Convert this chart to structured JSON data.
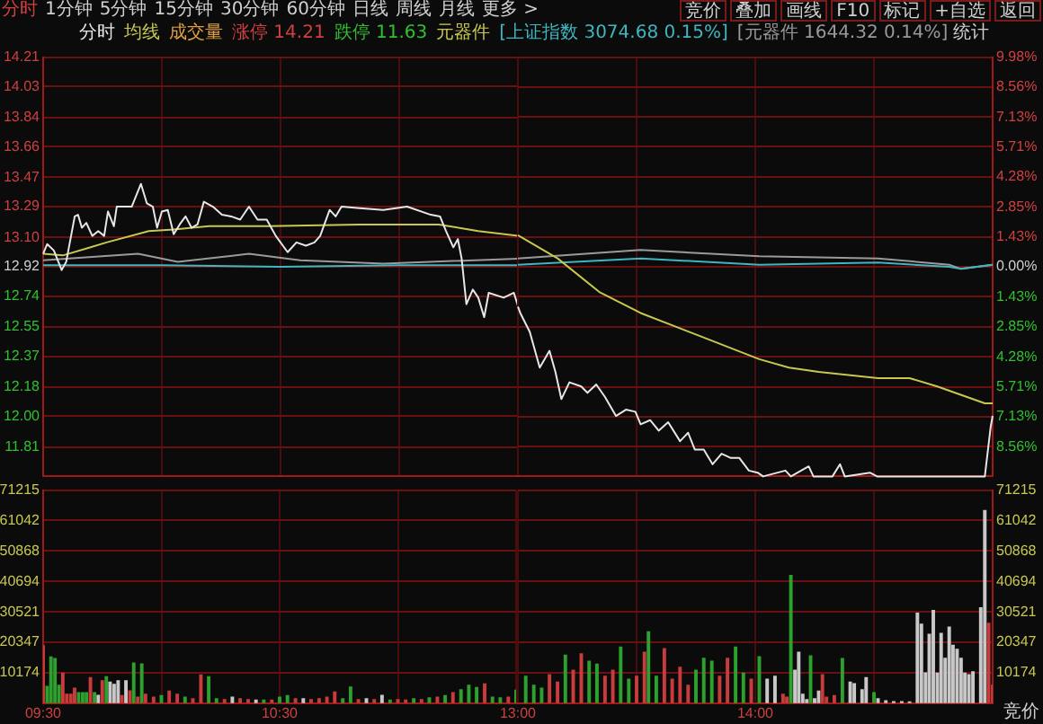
{
  "chart_data": [
    {
      "type": "line",
      "legend": "top",
      "grid": true,
      "tick_labels": "y",
      "xlim": [
        9.5,
        11.5
      ],
      "xticks": [
        {
          "value": 9.5,
          "label": null
        },
        {
          "value": 10,
          "label": null
        },
        {
          "value": 10.5,
          "label": null
        },
        {
          "value": 11,
          "label": null
        }
      ],
      "ylim": [
        11.63,
        14.21
      ],
      "yticks": [
        {
          "value": 14.21,
          "label": "14.21"
        },
        {
          "value": 14.03,
          "label": "14.03"
        },
        {
          "value": 13.84,
          "label": "13.84"
        },
        {
          "value": 13.66,
          "label": "13.66"
        },
        {
          "value": 13.47,
          "label": "13.47"
        },
        {
          "value": 13.29,
          "label": "13.29"
        },
        {
          "value": 13.1,
          "label": "13.10"
        },
        {
          "value": 12.92,
          "label": "12.92"
        },
        {
          "value": 12.74,
          "label": "12.74"
        },
        {
          "value": 12.55,
          "label": "12.55"
        },
        {
          "value": 12.37,
          "label": "12.37"
        },
        {
          "value": 12.18,
          "label": "12.18"
        },
        {
          "value": 12,
          "label": "12.00"
        },
        {
          "value": 11.81,
          "label": "11.81"
        },
        {
          "value": 11.63,
          "label": null
        }
      ],
      "annotations": [
        "涨停 14.21",
        "跌停 11.63",
        "元器件",
        "[上证指数 3074.68 0.15%]",
        "[元器件 1644.32 0.14%]",
        "分时",
        "1分钟",
        "5分钟",
        "15分钟",
        "30分钟",
        "60分钟",
        "日线",
        "周线",
        "月线",
        "更多 >",
        "竞价",
        "叠加",
        "画线",
        "F10",
        "标记",
        "+自选",
        "返回",
        "统计"
      ],
      "series": [
        {
          "name": "分时",
          "color": "#e6e6e6",
          "x": [
            9.5,
            9.517,
            9.545,
            9.578,
            9.597,
            9.633,
            9.647,
            9.663,
            9.682,
            9.707,
            9.732,
            9.757,
            9.773,
            9.798,
            9.81,
            9.873,
            9.912,
            9.937,
            9.962,
            9.98,
            10,
            10.025,
            10.05,
            10.075,
            10.1,
            10.125,
            10.15,
            10.177,
            10.215,
            10.253,
            10.292,
            10.33,
            10.367,
            10.403,
            10.442,
            10.48,
            10.53,
            10.567,
            10.607,
            10.643,
            10.667,
            10.707,
            10.732,
            10.757,
            10.833,
            10.933,
            11.033,
            11.133,
            11.172,
            11.197,
            11.228,
            11.247,
            11.263,
            11.283,
            11.31,
            11.333,
            11.358,
            11.377,
            11.44,
            11.483,
            11.5
          ],
          "values": [
            13.0,
            13.06,
            13.02,
            12.9,
            12.95,
            13.23,
            13.24,
            13.16,
            13.19,
            13.11,
            13.14,
            13.11,
            13.26,
            13.17,
            13.29,
            13.29,
            13.43,
            13.31,
            13.29,
            13.16,
            13.26,
            13.27,
            13.12,
            13.18,
            13.23,
            13.16,
            13.18,
            13.32,
            13.29,
            13.24,
            13.23,
            13.21,
            13.29,
            13.21,
            13.21,
            13.11,
            13.01,
            13.07,
            13.05,
            13.07,
            13.11,
            13.27,
            13.23,
            13.29,
            13.28,
            13.27,
            13.29,
            13.24,
            13.23,
            13.14,
            13.04,
            13.09,
            12.97,
            12.69,
            12.78,
            12.73,
            12.61,
            12.76,
            12.73,
            12.76,
            12.68
          ]
        },
        {
          "name": "均线",
          "color": "#c8c850",
          "x": [
            9.5,
            9.583,
            9.7,
            9.767,
            9.945,
            10.05,
            10.2,
            10.45,
            10.833,
            11.167,
            11.333,
            11.5
          ],
          "values": [
            13.0,
            12.99,
            13.04,
            13.07,
            13.14,
            13.15,
            13.17,
            13.17,
            13.18,
            13.18,
            13.14,
            13.11
          ]
        },
        {
          "color": "#3fb6c0",
          "x": [
            9.5,
            10,
            10.5,
            11,
            11.5
          ],
          "values": [
            12.93,
            12.93,
            12.92,
            12.93,
            12.93
          ]
        },
        {
          "color": "#9a9a9a",
          "x": [
            9.5,
            9.9,
            10.067,
            10.367,
            10.583,
            10.933,
            11.5
          ],
          "values": [
            12.96,
            13.0,
            12.95,
            13.0,
            12.96,
            12.94,
            12.97
          ]
        }
      ]
    },
    {
      "type": "line",
      "grid": true,
      "tick_labels": "y",
      "xlim": [
        13,
        15
      ],
      "xticks": [
        {
          "value": 13,
          "label": null
        },
        {
          "value": 13.5,
          "label": null
        },
        {
          "value": 14,
          "label": null
        },
        {
          "value": 14.5,
          "label": null
        },
        {
          "value": 15,
          "label": null
        }
      ],
      "y2lim": [
        -9.98,
        9.98
      ],
      "y2ticks": [
        {
          "value": 9.98,
          "label": "9.98%"
        },
        {
          "value": 8.56,
          "label": "8.56%"
        },
        {
          "value": 7.13,
          "label": "7.13%"
        },
        {
          "value": 5.71,
          "label": "5.71%"
        },
        {
          "value": 4.28,
          "label": "4.28%"
        },
        {
          "value": 2.85,
          "label": "2.85%"
        },
        {
          "value": 1.43,
          "label": "1.43%"
        },
        {
          "value": 0,
          "label": "0.00%"
        },
        {
          "value": -1.43,
          "label": "1.43%"
        },
        {
          "value": -2.85,
          "label": "2.85%"
        },
        {
          "value": -4.28,
          "label": "4.28%"
        },
        {
          "value": -5.71,
          "label": "5.71%"
        },
        {
          "value": -7.13,
          "label": "7.13%"
        },
        {
          "value": -8.56,
          "label": "8.56%"
        },
        {
          "value": -9.98,
          "label": null
        }
      ],
      "series": [
        {
          "color": "#e6e6e6",
          "axis": "y2",
          "x": [
            13,
            13.01,
            13.05,
            13.092,
            13.133,
            13.158,
            13.183,
            13.217,
            13.267,
            13.293,
            13.33,
            13.367,
            13.413,
            13.455,
            13.495,
            13.517,
            13.557,
            13.593,
            13.633,
            13.683,
            13.717,
            13.745,
            13.783,
            13.82,
            13.858,
            13.897,
            13.933,
            13.973,
            14.01,
            14.033,
            14.127,
            14.15,
            14.225,
            14.245,
            14.325,
            14.357,
            14.377,
            14.483,
            14.513,
            14.967,
            14.992,
            15
          ],
          "values": [
            -1.9,
            -2.2,
            -3.1,
            -4.8,
            -4.0,
            -5.0,
            -6.3,
            -5.5,
            -5.7,
            -6.0,
            -5.6,
            -6.2,
            -7.1,
            -6.8,
            -6.9,
            -7.5,
            -7.3,
            -7.8,
            -7.4,
            -8.3,
            -7.9,
            -8.7,
            -8.7,
            -9.4,
            -8.9,
            -9.1,
            -9.1,
            -9.7,
            -9.8,
            -9.98,
            -9.7,
            -9.98,
            -9.5,
            -9.98,
            -9.98,
            -9.4,
            -9.98,
            -9.8,
            -9.98,
            -9.98,
            -7.6,
            -7.1
          ]
        },
        {
          "color": "#c8c850",
          "axis": "y2",
          "x": [
            13,
            13.167,
            13.343,
            13.517,
            13.767,
            14.017,
            14.142,
            14.267,
            14.517,
            14.65,
            14.767,
            14.967,
            15
          ],
          "values": [
            1.5,
            0.4,
            -1.2,
            -2.2,
            -3.3,
            -4.4,
            -4.8,
            -5.0,
            -5.3,
            -5.3,
            -5.7,
            -6.5,
            -6.5
          ]
        },
        {
          "color": "#3fb6c0",
          "axis": "y2",
          "x": [
            13,
            13.517,
            14.017,
            14.517,
            14.817,
            14.867,
            15
          ],
          "values": [
            0.1,
            0.4,
            0.1,
            0.2,
            0,
            -0.1,
            0.1
          ]
        },
        {
          "color": "#9a9a9a",
          "axis": "y2",
          "x": [
            13,
            13.517,
            14.017,
            14.517,
            14.817,
            14.867,
            15
          ],
          "values": [
            0.4,
            0.8,
            0.5,
            0.4,
            0.1,
            -0.1,
            0.1
          ]
        }
      ]
    },
    {
      "type": "bar",
      "grid": true,
      "xlim": [
        9.5,
        11.5
      ],
      "xticks": [
        {
          "value": 9.5,
          "label": "09:30"
        },
        {
          "value": 10,
          "label": null
        },
        {
          "value": 10.5,
          "label": "10:30"
        },
        {
          "value": 11,
          "label": null
        },
        {
          "value": 11.5,
          "label": null
        }
      ],
      "ylim": [
        0,
        71215
      ],
      "yticks": [
        10174,
        20347,
        30521,
        40694,
        50868,
        61042,
        71215
      ],
      "series": [
        {
          "name": "成交量",
          "color": "#e0a040",
          "x": [
            9.5,
            9.517,
            9.533,
            9.55,
            9.567,
            9.583,
            9.6,
            9.617,
            9.633,
            9.65,
            9.667,
            9.683,
            9.7,
            9.717,
            9.733,
            9.75,
            9.767,
            9.783,
            9.8,
            9.817,
            9.833,
            9.85,
            9.867,
            9.883,
            9.9,
            9.917,
            9.933,
            9.967,
            10,
            10.033,
            10.067,
            10.1,
            10.133,
            10.167,
            10.2,
            10.233,
            10.267,
            10.3,
            10.333,
            10.367,
            10.4,
            10.433,
            10.467,
            10.5,
            10.533,
            10.567,
            10.6,
            10.633,
            10.667,
            10.7,
            10.733,
            10.767,
            10.8,
            10.833,
            10.867,
            10.9,
            10.933,
            10.967,
            11,
            11.033,
            11.067,
            11.1,
            11.133,
            11.167,
            11.2,
            11.233,
            11.267,
            11.3,
            11.333,
            11.367,
            11.4,
            11.433,
            11.467,
            11.5
          ],
          "values": [
            19200,
            5600,
            15400,
            14900,
            6000,
            10000,
            3000,
            3000,
            5000,
            3500,
            3500,
            3500,
            8500,
            3500,
            2600,
            7500,
            8800,
            7000,
            6300,
            7500,
            2500,
            7500,
            4100,
            13400,
            2000,
            13100,
            3000,
            2000,
            2500,
            4000,
            3000,
            2000,
            1500,
            9400,
            8800,
            1500,
            1200,
            2000,
            1500,
            1200,
            1000,
            1000,
            1000,
            2000,
            2500,
            1500,
            1500,
            1200,
            1500,
            2000,
            3700,
            1500,
            5400,
            1200,
            1500,
            1200,
            2600,
            1000,
            1200,
            1000,
            1500,
            1200,
            1800,
            2000,
            2500,
            3500,
            4500,
            6000,
            5200,
            6400,
            2000,
            1800,
            2000,
            4300
          ],
          "colors": [
            "#c83c3c",
            "#2ea02e",
            "#2ea02e",
            "#2ea02e",
            "#2ea02e",
            "#c83c3c",
            "#c83c3c",
            "#c83c3c",
            "#c83c3c",
            "#2ea02e",
            "#2ea02e",
            "#2ea02e",
            "#c83c3c",
            "#2ea02e",
            "#c8c8c8",
            "#c83c3c",
            "#2ea02e",
            "#c8c8c8",
            "#c8c8c8",
            "#c8c8c8",
            "#c83c3c",
            "#c8c8c8",
            "#c83c3c",
            "#2ea02e",
            "#c83c3c",
            "#2ea02e",
            "#c83c3c",
            "#c83c3c",
            "#2ea02e",
            "#c83c3c",
            "#c83c3c",
            "#2ea02e",
            "#c83c3c",
            "#c83c3c",
            "#2ea02e",
            "#2ea02e",
            "#c83c3c",
            "#c8c8c8",
            "#c83c3c",
            "#c83c3c",
            "#c8c8c8",
            "#2ea02e",
            "#c83c3c",
            "#2ea02e",
            "#2ea02e",
            "#c83c3c",
            "#c8c8c8",
            "#c83c3c",
            "#c83c3c",
            "#c83c3c",
            "#c83c3c",
            "#2ea02e",
            "#2ea02e",
            "#c83c3c",
            "#c8c8c8",
            "#c83c3c",
            "#c8c8c8",
            "#2ea02e",
            "#c83c3c",
            "#c83c3c",
            "#2ea02e",
            "#c83c3c",
            "#2ea02e",
            "#c83c3c",
            "#2ea02e",
            "#c83c3c",
            "#2ea02e",
            "#2ea02e",
            "#2ea02e",
            "#c83c3c",
            "#2ea02e",
            "#2ea02e",
            "#c83c3c",
            "#2ea02e"
          ]
        }
      ]
    },
    {
      "type": "bar",
      "grid": true,
      "xlim": [
        13,
        15
      ],
      "xticks": [
        {
          "value": 13,
          "label": "13:00"
        },
        {
          "value": 13.5,
          "label": null
        },
        {
          "value": 14,
          "label": "14:00"
        },
        {
          "value": 14.5,
          "label": null
        },
        {
          "value": 15,
          "label": null
        }
      ],
      "y2lim": [
        0,
        71215
      ],
      "y2ticks": [
        10174,
        20347,
        30521,
        40694,
        50868,
        61042,
        71215
      ],
      "annotations": [
        "竞价"
      ],
      "series": [
        {
          "axis": "y2",
          "x": [
            13.033,
            13.067,
            13.1,
            13.133,
            13.167,
            13.2,
            13.233,
            13.267,
            13.3,
            13.333,
            13.367,
            13.4,
            13.433,
            13.467,
            13.5,
            13.533,
            13.55,
            13.583,
            13.617,
            13.65,
            13.683,
            13.717,
            13.75,
            13.783,
            13.817,
            13.85,
            13.883,
            13.917,
            13.95,
            13.983,
            14.017,
            14.05,
            14.083,
            14.117,
            14.133,
            14.15,
            14.167,
            14.183,
            14.2,
            14.217,
            14.233,
            14.25,
            14.267,
            14.283,
            14.3,
            14.333,
            14.367,
            14.4,
            14.417,
            14.45,
            14.467,
            14.5,
            14.517,
            14.55,
            14.583,
            14.617,
            14.65,
            14.683,
            14.7,
            14.717,
            14.733,
            14.75,
            14.767,
            14.783,
            14.8,
            14.817,
            14.833,
            14.85,
            14.867,
            14.883,
            14.9,
            14.917,
            14.95,
            14.967,
            14.983,
            15
          ],
          "values": [
            9000,
            6000,
            5000,
            9500,
            7000,
            16000,
            11000,
            16500,
            14000,
            13000,
            9000,
            11000,
            18700,
            8000,
            9000,
            17000,
            23800,
            9000,
            18200,
            8000,
            12000,
            6000,
            11000,
            15000,
            14000,
            9000,
            15000,
            18700,
            10000,
            8000,
            15500,
            8000,
            9000,
            3000,
            2000,
            42700,
            11000,
            17000,
            3000,
            1200,
            15800,
            1500,
            4000,
            9500,
            2000,
            2500,
            14900,
            7000,
            6500,
            4500,
            8500,
            3500,
            1500,
            800,
            500,
            500,
            400,
            30100,
            26400,
            10100,
            23000,
            31000,
            10000,
            23300,
            15000,
            25400,
            19300,
            18000,
            15000,
            10000,
            9500,
            10500,
            31900,
            64400,
            26700,
            6000
          ],
          "colors": [
            "#2ea02e",
            "#2ea02e",
            "#2ea02e",
            "#c83c3c",
            "#c83c3c",
            "#2ea02e",
            "#c83c3c",
            "#c83c3c",
            "#2ea02e",
            "#2ea02e",
            "#c83c3c",
            "#c83c3c",
            "#2ea02e",
            "#2ea02e",
            "#c83c3c",
            "#c83c3c",
            "#2ea02e",
            "#2ea02e",
            "#c83c3c",
            "#c83c3c",
            "#c83c3c",
            "#c83c3c",
            "#2ea02e",
            "#2ea02e",
            "#2ea02e",
            "#c83c3c",
            "#c83c3c",
            "#2ea02e",
            "#2ea02e",
            "#c83c3c",
            "#2ea02e",
            "#c8c8c8",
            "#c8c8c8",
            "#c83c3c",
            "#c83c3c",
            "#2ea02e",
            "#c8c8c8",
            "#c8c8c8",
            "#c8c8c8",
            "#c8c8c8",
            "#2ea02e",
            "#c8c8c8",
            "#c8c8c8",
            "#c83c3c",
            "#c83c3c",
            "#c83c3c",
            "#2ea02e",
            "#c8c8c8",
            "#c8c8c8",
            "#c8c8c8",
            "#c8c8c8",
            "#2ea02e",
            "#c8c8c8",
            "#c8c8c8",
            "#c8c8c8",
            "#c8c8c8",
            "#c8c8c8",
            "#c8c8c8",
            "#c8c8c8",
            "#c8c8c8",
            "#c8c8c8",
            "#c8c8c8",
            "#c8c8c8",
            "#c8c8c8",
            "#c8c8c8",
            "#c8c8c8",
            "#c8c8c8",
            "#c8c8c8",
            "#c8c8c8",
            "#c8c8c8",
            "#c8c8c8",
            "#c8c8c8",
            "#c8c8c8",
            "#c8c8c8",
            "#c83c3c",
            "#c83c3c"
          ]
        }
      ]
    }
  ]
}
